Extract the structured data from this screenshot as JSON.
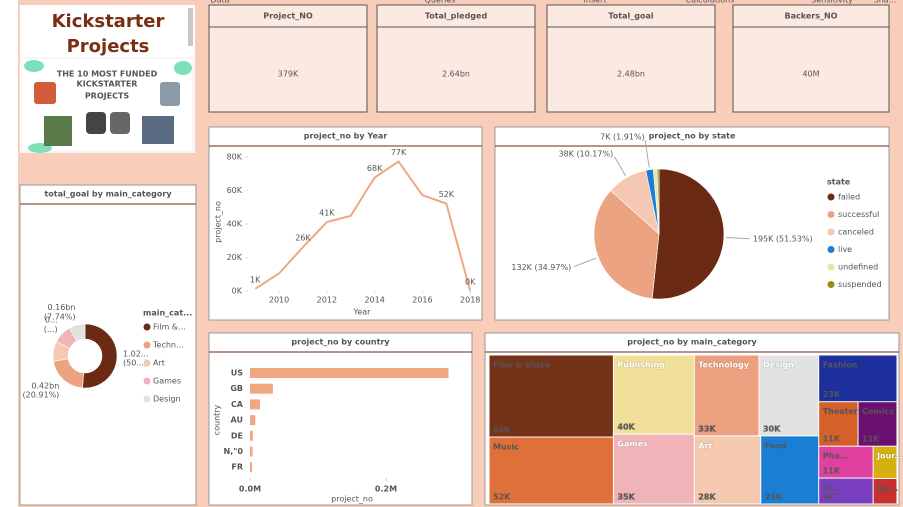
{
  "ribbon": [
    "Data",
    "Queries",
    "Insert",
    "Calculations",
    "Sensitivity",
    "Sha..."
  ],
  "header": {
    "title": "Kickstarter Projects",
    "image_text": [
      "THE 10 MOST FUNDED",
      "KICKSTARTER",
      "PROJECTS"
    ]
  },
  "kpis": [
    {
      "title": "Project_NO",
      "value": "379K"
    },
    {
      "title": "Total_pledged",
      "value": "2.64bn"
    },
    {
      "title": "Total_goal",
      "value": "2.48bn"
    },
    {
      "title": "Backers_NO",
      "value": "40M"
    }
  ],
  "chart_data": [
    {
      "type": "line",
      "title": "project_no by Year",
      "x_label": "Year",
      "y_label": "project_no",
      "x": [
        2009,
        2010,
        2011,
        2012,
        2013,
        2014,
        2015,
        2016,
        2017,
        2018
      ],
      "values": [
        1300,
        10500,
        26200,
        41200,
        44800,
        67700,
        77300,
        57200,
        52200,
        100
      ],
      "value_labels": [
        "1K",
        null,
        "26K",
        "41K",
        null,
        "68K",
        "77K",
        null,
        "52K",
        "0K"
      ],
      "color": "#f0a882",
      "xlim": [
        2008.7,
        2018.2
      ],
      "xticks": [
        2010,
        2012,
        2014,
        2016,
        2018
      ],
      "ylim": [
        0,
        85000
      ],
      "yticks": [
        {
          "value": 0,
          "label": "0K"
        },
        {
          "value": 20000,
          "label": "20K"
        },
        {
          "value": 40000,
          "label": "40K"
        },
        {
          "value": 60000,
          "label": "60K"
        },
        {
          "value": 80000,
          "label": "80K"
        }
      ]
    },
    {
      "type": "pie",
      "title": "project_no by state",
      "legend_title": "state",
      "categories": [
        "failed",
        "successful",
        "canceled",
        "live",
        "undefined",
        "suspended"
      ],
      "values": [
        195000,
        132000,
        38000,
        7000,
        3500,
        1800
      ],
      "value_labels": [
        "195K (51.53%)",
        "132K (34.97%)",
        "38K (10.17%)",
        "7K (1.91%)",
        null,
        null
      ],
      "colors": [
        "#6b2a14",
        "#eba382",
        "#f4c8b2",
        "#1a7fd4",
        "#ece3a6",
        "#9a8a10"
      ]
    },
    {
      "type": "donut",
      "title": "total_goal by main_category",
      "legend_title": "main_cat...",
      "categories": [
        "Film &...",
        "Techn...",
        "Art",
        "Games",
        "Design"
      ],
      "values": [
        1.02,
        0.42,
        0.2,
        0.19,
        0.16
      ],
      "value_labels": [
        "1.02... (50...)",
        "0.42bn (20.91%)",
        null,
        "0... (...)",
        "0.16bn (7.74%)"
      ],
      "colors": [
        "#6b2a14",
        "#eba382",
        "#f4c8b2",
        "#f0b4b8",
        "#e2e2e2"
      ]
    },
    {
      "type": "bar",
      "orientation": "horizontal",
      "title": "project_no by country",
      "x_label": "project_no",
      "y_label": "country",
      "categories": [
        "US",
        "GB",
        "CA",
        "AU",
        "DE",
        "N,\"0",
        "FR"
      ],
      "values": [
        292000,
        33700,
        14800,
        7800,
        4200,
        3800,
        2900
      ],
      "color": "#f0a882",
      "xlim": [
        0,
        300000
      ],
      "xticks": [
        {
          "value": 0,
          "label": "0.0M"
        },
        {
          "value": 200000,
          "label": "0.2M"
        }
      ]
    },
    {
      "type": "treemap",
      "title": "project_no by main_category",
      "categories": [
        "Film & Video",
        "Music",
        "Publishing",
        "Games",
        "Technology",
        "Design",
        "Art",
        "Food",
        "Fashion",
        "Theater",
        "Comics",
        "Pho...",
        "Cr...",
        "Jour...",
        "Da..."
      ],
      "values": [
        63600,
        51900,
        39900,
        35200,
        32600,
        30100,
        28200,
        24600,
        22800,
        10900,
        10800,
        10800,
        8800,
        4800,
        3800
      ],
      "value_labels": [
        "64K",
        "52K",
        "40K",
        "35K",
        "33K",
        "30K",
        "28K",
        "25K",
        "23K",
        "11K",
        "11K",
        "11K",
        "9K",
        null,
        null
      ],
      "colors": [
        "#743219",
        "#e0703a",
        "#f0e09a",
        "#f0b4b8",
        "#eda080",
        "#e2e2e2",
        "#f5c8b0",
        "#1a7fd4",
        "#1c2f9a",
        "#d4602a",
        "#6a1070",
        "#e040a0",
        "#7a3fc0",
        "#d4b010",
        "#c83030"
      ]
    }
  ]
}
